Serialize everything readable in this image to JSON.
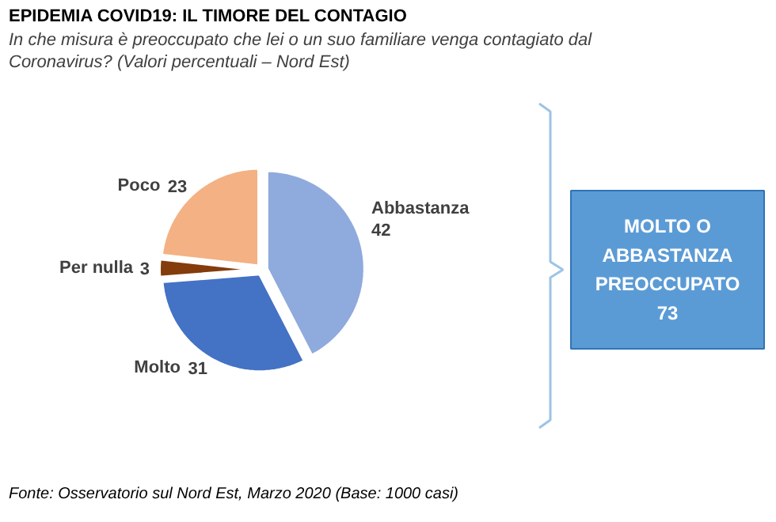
{
  "chart_data": {
    "type": "pie",
    "title": "EPIDEMIA COVID19: IL TIMORE DEL CONTAGIO",
    "subtitle": "In che misura è preoccupato che lei o un suo familiare venga contagiato dal\nCoronavirus?  (Valori percentuali – Nord Est)",
    "categories": [
      "Abbastanza",
      "Molto",
      "Per nulla",
      "Poco"
    ],
    "values": [
      42,
      31,
      3,
      23
    ],
    "colors": [
      "#8faadc",
      "#4472c4",
      "#843c0c",
      "#f4b183"
    ],
    "data_labels": true,
    "legend": false,
    "annotations": [
      "MOLTO O\nABBASTANZA\nPREOCCUPATO\n73",
      "Fonte: Osservatorio sul Nord Est, Marzo 2020 (Base: 1000  casi)"
    ]
  }
}
